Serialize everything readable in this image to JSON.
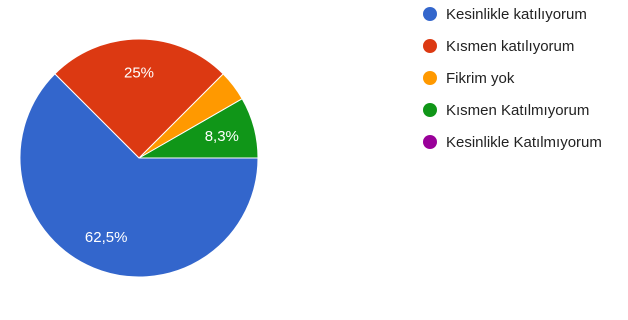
{
  "chart_data": {
    "type": "pie",
    "title": "",
    "legend_position": "right",
    "slices": [
      {
        "name": "Kesinlikle katılıyorum",
        "value": 62.5,
        "label": "62,5%",
        "color": "#3366cc"
      },
      {
        "name": "Kısmen katılıyorum",
        "value": 25,
        "label": "25%",
        "color": "#dc3912"
      },
      {
        "name": "Fikrim yok",
        "value": 4.2,
        "label": "",
        "color": "#ff9900"
      },
      {
        "name": "Kısmen Katılmıyorum",
        "value": 8.3,
        "label": "8,3%",
        "color": "#109618"
      },
      {
        "name": "Kesinlikle Katılmıyorum",
        "value": 0,
        "label": "",
        "color": "#990099"
      }
    ]
  }
}
